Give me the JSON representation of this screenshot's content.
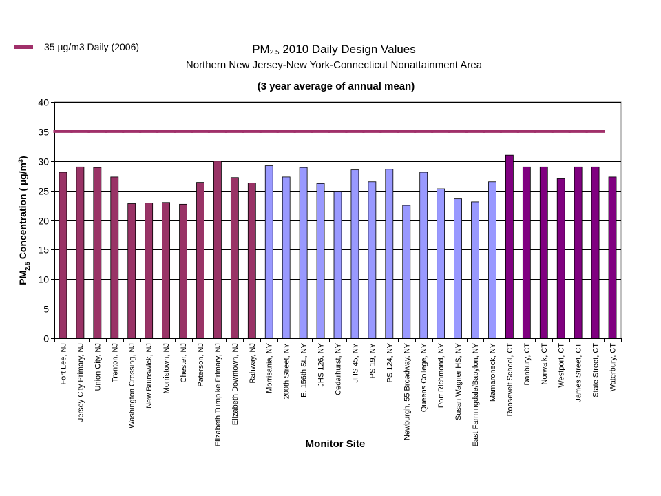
{
  "legend": {
    "label": "35 µg/m3 Daily (2006)",
    "color": "#a0306a"
  },
  "title_main": "PM",
  "title_sub": "2.5",
  "title_rest": " 2010 Daily Design Values",
  "subtitle": "Northern New Jersey-New York-Connecticut Nonattainment Area",
  "subtitle2": "(3 year average of annual mean)",
  "chart_data": {
    "type": "bar",
    "xlabel": "Monitor Site",
    "ylabel": {
      "prefix": "PM",
      "sub": "2.5",
      "middle": " Concentration ( µg/m",
      "sup": "3",
      "suffix": ")"
    },
    "ylim": [
      0,
      40
    ],
    "yticks": [
      0,
      5,
      10,
      15,
      20,
      25,
      30,
      35,
      40
    ],
    "grid": true,
    "standard_line": {
      "value": 35,
      "color": "#a0306a"
    },
    "series_colors": {
      "NJ": "#993366",
      "NY": "#9999ff",
      "CT": "#800080"
    },
    "categories": [
      "Fort Lee, NJ",
      "Jersey City Primary, NJ",
      "Union City, NJ",
      "Trenton, NJ",
      "Washington Crossing, NJ",
      "New Brunswick, NJ",
      "Morristown, NJ",
      "Chester, NJ",
      "Paterson, NJ",
      "Elizabeth Turnpike Primary, NJ",
      "Elizabeth Downtown, NJ",
      "Rahway, NJ",
      "Morrisania, NY",
      "200th Street, NY",
      "E. 156th St., NY",
      "JHS 126, NY",
      "Cedarhurst, NY",
      "JHS 45, NY",
      "PS 19, NY",
      "PS 124, NY",
      "Newburgh, 55 Broadway, NY",
      "Queens College, NY",
      "Port Richmond, NY",
      "Susan Wagner HS, NY",
      "East Farmingdale/Babylon, NY",
      "Mamaroneck, NY",
      "Roosevelt School, CT",
      "Danbury, CT",
      "Norwalk, CT",
      "Westport, CT",
      "James Street, CT",
      "State Street, CT",
      "Waterbury, CT"
    ],
    "groups": [
      "NJ",
      "NJ",
      "NJ",
      "NJ",
      "NJ",
      "NJ",
      "NJ",
      "NJ",
      "NJ",
      "NJ",
      "NJ",
      "NJ",
      "NY",
      "NY",
      "NY",
      "NY",
      "NY",
      "NY",
      "NY",
      "NY",
      "NY",
      "NY",
      "NY",
      "NY",
      "NY",
      "NY",
      "CT",
      "CT",
      "CT",
      "CT",
      "CT",
      "CT",
      "CT"
    ],
    "values": [
      28.1,
      29.0,
      28.9,
      27.3,
      22.8,
      22.9,
      23.0,
      22.7,
      26.4,
      30.0,
      27.2,
      26.3,
      29.2,
      27.3,
      28.9,
      26.2,
      24.9,
      28.5,
      26.5,
      28.6,
      22.5,
      28.1,
      25.3,
      23.6,
      23.1,
      26.5,
      31.0,
      29.0,
      29.0,
      27.0,
      29.0,
      29.0,
      27.3
    ]
  }
}
